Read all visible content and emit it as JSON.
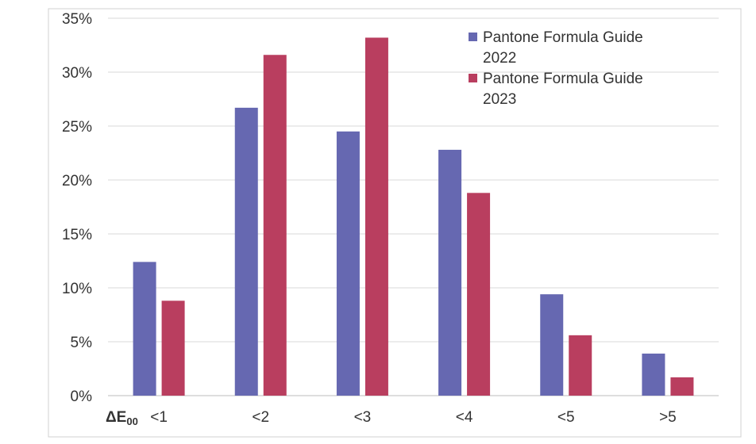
{
  "chart_data": {
    "type": "bar",
    "xlabel": "ΔE",
    "xlabel_sub": "00",
    "ylabel": "",
    "categories": [
      "<1",
      "<2",
      "<3",
      "<4",
      "<5",
      ">5"
    ],
    "ylim": [
      0,
      35
    ],
    "yticks": [
      0,
      5,
      10,
      15,
      20,
      25,
      30,
      35
    ],
    "ytick_labels": [
      "0%",
      "5%",
      "10%",
      "15%",
      "20%",
      "25%",
      "30%",
      "35%"
    ],
    "grid": true,
    "legend_position": "top-right",
    "series": [
      {
        "name": "Pantone Formula Guide 2022",
        "legend_lines": [
          "Pantone Formula Guide",
          "2022"
        ],
        "color": "#6668b1",
        "values": [
          12.4,
          26.7,
          24.5,
          22.8,
          9.4,
          3.9
        ]
      },
      {
        "name": "Pantone Formula Guide 2023",
        "legend_lines": [
          "Pantone Formula Guide",
          "2023"
        ],
        "color": "#b93e5f",
        "values": [
          8.8,
          31.6,
          33.2,
          18.8,
          5.6,
          1.7
        ]
      }
    ]
  }
}
